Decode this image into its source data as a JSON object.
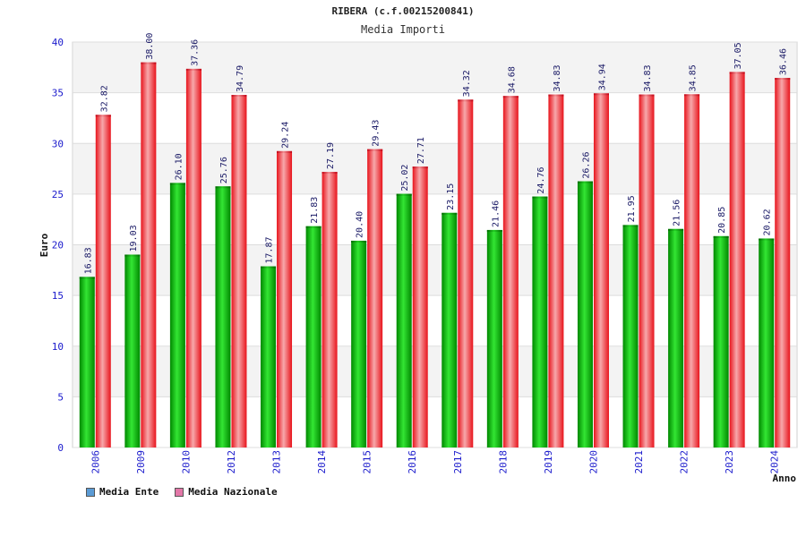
{
  "chart_data": {
    "type": "bar",
    "title": "RIBERA (c.f.00215200841)",
    "subtitle": "Media Importi",
    "xlabel": "Anno",
    "ylabel": "Euro",
    "ylim": [
      0,
      40
    ],
    "yticks": [
      0,
      5,
      10,
      15,
      20,
      25,
      30,
      35,
      40
    ],
    "categories": [
      "2006",
      "2009",
      "2010",
      "2012",
      "2013",
      "2014",
      "2015",
      "2016",
      "2017",
      "2018",
      "2019",
      "2020",
      "2021",
      "2022",
      "2023",
      "2024"
    ],
    "series": [
      {
        "name": "Media Ente",
        "color": "#00aa00",
        "values": [
          16.83,
          19.03,
          26.1,
          25.76,
          17.87,
          21.83,
          20.4,
          25.02,
          23.15,
          21.46,
          24.76,
          26.26,
          21.95,
          21.56,
          20.85,
          20.62
        ],
        "labels": [
          "16.83",
          "19.03",
          "26.10",
          "25.76",
          "17.87",
          "21.83",
          "20.40",
          "25.02",
          "23.15",
          "21.46",
          "24.76",
          "26.26",
          "21.95",
          "21.56",
          "20.85",
          "20.62"
        ]
      },
      {
        "name": "Media Nazionale",
        "color": "#ee1c25",
        "values": [
          32.82,
          38.0,
          37.36,
          34.79,
          29.24,
          27.19,
          29.43,
          27.71,
          34.32,
          34.68,
          34.83,
          34.94,
          34.83,
          34.85,
          37.05,
          36.46
        ],
        "labels": [
          "32.82",
          "38.00",
          "37.36",
          "34.79",
          "29.24",
          "27.19",
          "29.43",
          "27.71",
          "34.32",
          "34.68",
          "34.83",
          "34.94",
          "34.83",
          "34.85",
          "37.05",
          "36.46"
        ]
      }
    ]
  },
  "legend": {
    "items": [
      {
        "label": "Media Ente",
        "color": "#5b9bd5"
      },
      {
        "label": "Media Nazionale",
        "color": "#e377a8"
      }
    ]
  }
}
